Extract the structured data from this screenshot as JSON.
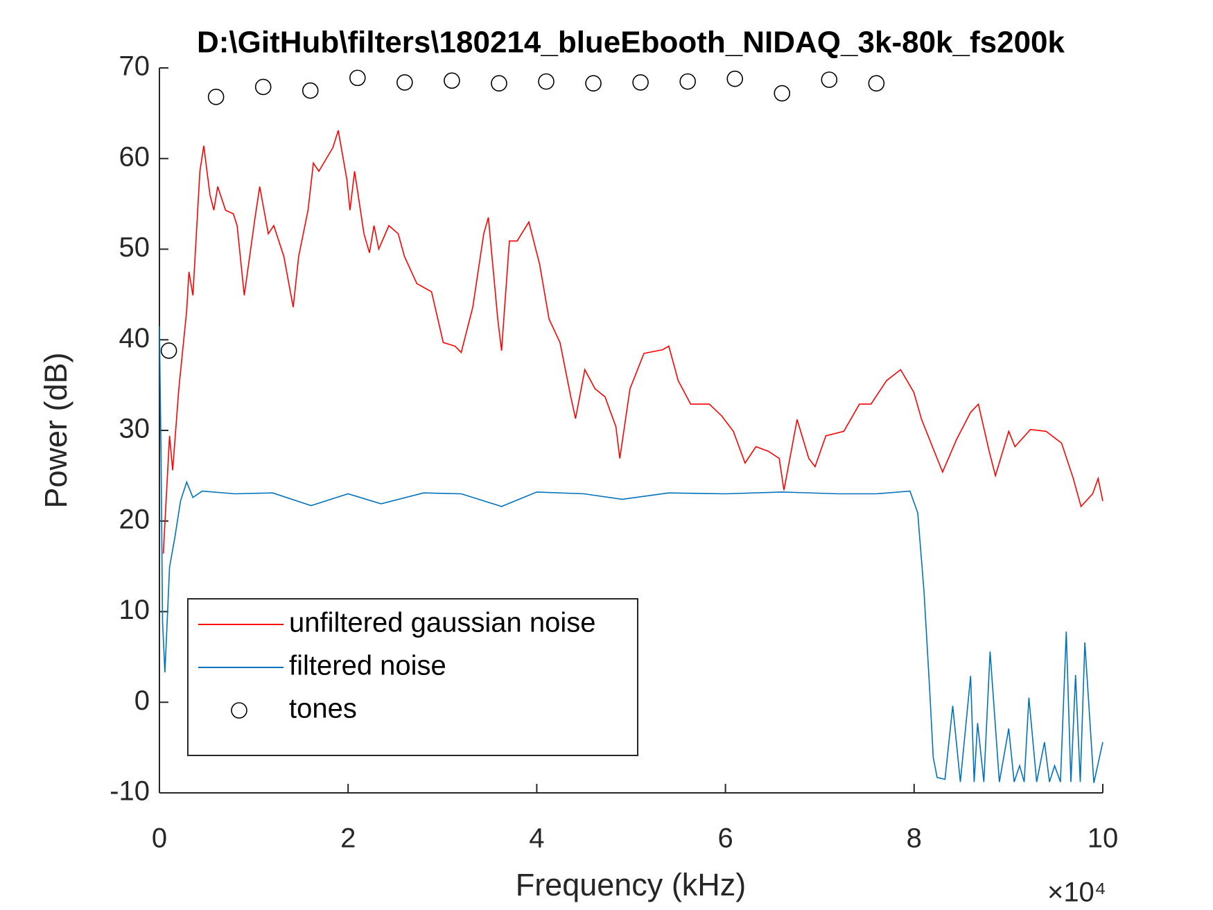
{
  "chart_data": {
    "type": "line",
    "title": "D:\\GitHub\\filters\\180214_blueEbooth_NIDAQ_3k-80k_fs200k",
    "x_label": "Frequency (kHz)",
    "y_label": "Power (dB)",
    "x_exponent": "×10⁴",
    "xlim": [
      0,
      100000
    ],
    "ylim": [
      -10,
      70
    ],
    "xticks": [
      0,
      {
        "value": 20000,
        "label": "2"
      },
      {
        "value": 40000,
        "label": "4"
      },
      {
        "value": 60000,
        "label": "6"
      },
      {
        "value": 80000,
        "label": "8"
      },
      {
        "value": 100000,
        "label": "10"
      }
    ],
    "yticks": [
      -10,
      0,
      10,
      20,
      30,
      40,
      50,
      60,
      70
    ],
    "grid": false,
    "legend_location": "lower left",
    "series": [
      {
        "name": "unfiltered gaussian noise",
        "color": "#ff0000",
        "mode": "line",
        "x": [
          410,
          1070,
          1400,
          2060,
          2890,
          3130,
          3550,
          4290,
          4700,
          5360,
          5770,
          6180,
          7010,
          7830,
          8240,
          8990,
          10140,
          10630,
          11540,
          12120,
          13190,
          14180,
          14760,
          15750,
          16320,
          16900,
          18380,
          18960,
          19870,
          20200,
          20690,
          21680,
          22260,
          22750,
          23250,
          24320,
          25310,
          25970,
          27290,
          28850,
          30090,
          31330,
          31990,
          33220,
          34380,
          34870,
          35860,
          36270,
          37100,
          37920,
          39160,
          40310,
          41300,
          42460,
          43610,
          44110,
          45090,
          46170,
          47240,
          48390,
          48800,
          49880,
          51360,
          53340,
          54000,
          54990,
          56310,
          58290,
          59600,
          60840,
          62080,
          63230,
          64550,
          65700,
          66200,
          67600,
          68840,
          69500,
          70650,
          72550,
          74200,
          75430,
          77080,
          78570,
          79970,
          80790,
          82440,
          83020,
          84500,
          85990,
          86810,
          87960,
          88620,
          90030,
          90690,
          92330,
          93980,
          95630,
          96870,
          97690,
          98930,
          99510,
          100000
        ],
        "values": [
          16.4,
          29.4,
          25.6,
          34.6,
          43.2,
          47.5,
          44.9,
          58.6,
          61.4,
          56.0,
          54.3,
          56.9,
          54.3,
          53.9,
          52.6,
          44.9,
          53.5,
          56.9,
          51.7,
          52.6,
          49.2,
          43.6,
          49.2,
          54.3,
          59.5,
          58.6,
          61.2,
          63.1,
          57.7,
          54.3,
          58.6,
          51.7,
          49.6,
          52.6,
          50.0,
          52.6,
          51.7,
          49.2,
          46.2,
          45.3,
          39.7,
          39.3,
          38.6,
          43.6,
          51.7,
          53.5,
          42.3,
          38.8,
          50.9,
          50.9,
          53.0,
          48.3,
          42.3,
          39.7,
          33.7,
          31.3,
          36.7,
          34.6,
          33.7,
          30.4,
          26.9,
          34.6,
          38.5,
          38.9,
          39.3,
          35.5,
          32.9,
          32.9,
          31.6,
          29.9,
          26.4,
          28.2,
          27.7,
          26.9,
          23.4,
          31.2,
          26.9,
          26.0,
          29.4,
          29.9,
          32.9,
          32.9,
          35.5,
          36.7,
          34.2,
          31.2,
          26.9,
          25.4,
          29.0,
          32.0,
          32.9,
          27.7,
          25.0,
          29.9,
          28.2,
          30.1,
          29.9,
          28.6,
          24.7,
          21.6,
          23.0,
          24.7,
          22.2
        ]
      },
      {
        "name": "filtered noise",
        "color": "#0072bd",
        "mode": "line",
        "x": [
          0,
          170,
          330,
          580,
          820,
          1070,
          1650,
          2230,
          2890,
          3550,
          4530,
          8000,
          12000,
          16080,
          20000,
          23500,
          28000,
          32000,
          36270,
          40000,
          45000,
          49050,
          54000,
          60000,
          66000,
          72000,
          76000,
          79560,
          80380,
          81040,
          81620,
          82030,
          82440,
          83270,
          84090,
          84900,
          85990,
          86360,
          86730,
          87390,
          88050,
          89040,
          90030,
          90600,
          91180,
          91670,
          92170,
          92990,
          93820,
          94350,
          94890,
          95510,
          96130,
          96620,
          97110,
          97610,
          98100,
          99050,
          100000
        ],
        "values": [
          41.5,
          27.7,
          8.9,
          3.3,
          8.9,
          14.9,
          18.3,
          22.2,
          24.3,
          22.6,
          23.3,
          23.0,
          23.1,
          21.7,
          23.0,
          21.9,
          23.1,
          23.0,
          21.6,
          23.2,
          23.0,
          22.4,
          23.1,
          23.0,
          23.2,
          23.0,
          23.0,
          23.3,
          20.9,
          12.3,
          2.0,
          -6.1,
          -8.3,
          -8.5,
          -0.4,
          -8.8,
          2.9,
          -8.8,
          -2.3,
          -8.8,
          5.6,
          -8.8,
          -2.9,
          -8.8,
          -7.0,
          -8.8,
          0.5,
          -8.8,
          -4.4,
          -8.8,
          -7.0,
          -8.8,
          7.8,
          -8.8,
          3.0,
          -8.8,
          6.6,
          -8.9,
          -4.4
        ]
      },
      {
        "name": "tones",
        "color": "#000000",
        "mode": "markers",
        "x": [
          1000,
          6000,
          11000,
          16000,
          21000,
          26000,
          31000,
          36000,
          41000,
          46000,
          51000,
          56000,
          61000,
          66000,
          71000,
          76000
        ],
        "values": [
          38.8,
          66.8,
          67.9,
          67.5,
          68.9,
          68.4,
          68.6,
          68.3,
          68.5,
          68.3,
          68.4,
          68.5,
          68.8,
          67.2,
          68.7,
          68.3
        ]
      }
    ]
  }
}
